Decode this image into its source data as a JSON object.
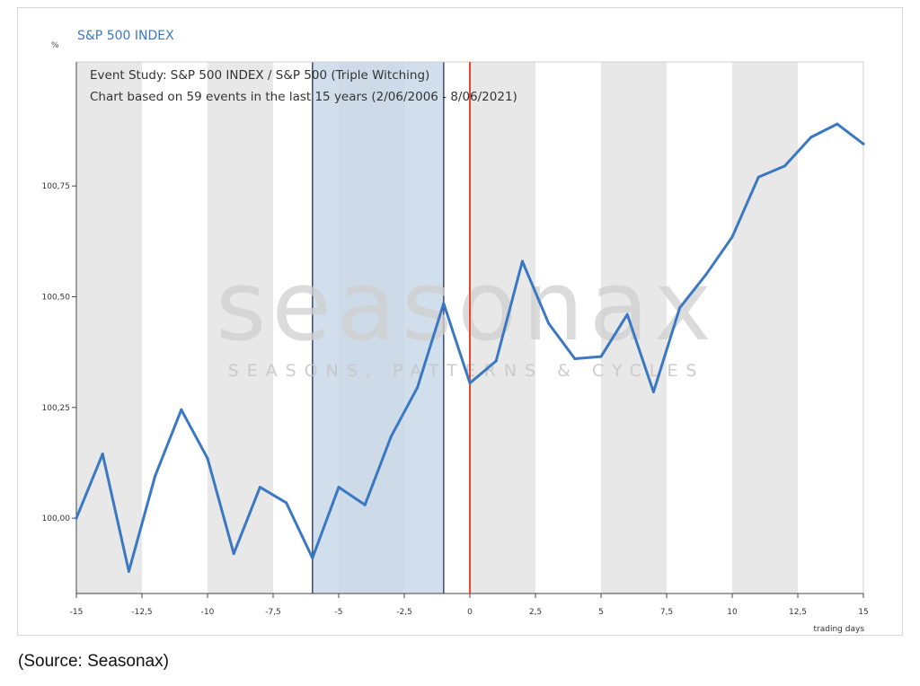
{
  "chart_data": {
    "type": "line",
    "title": "S&P 500 INDEX",
    "y_unit": "%",
    "xlabel": "trading days",
    "ylabel": "",
    "annotations": [
      "Event Study: S&P 500 INDEX / S&P 500 (Triple Witching)",
      "Chart based on 59 events in the last 15 years (2/06/2006 - 8/06/2021)"
    ],
    "watermark": {
      "main": "seasonax",
      "tagline": "SEASONS, PATTERNS & CYCLES"
    },
    "xlim": [
      -15,
      15
    ],
    "ylim": [
      99.83,
      101.03
    ],
    "x_ticks": [
      -15,
      -12.5,
      -10,
      -7.5,
      -5,
      -2.5,
      0,
      2.5,
      5,
      7.5,
      10,
      12.5,
      15
    ],
    "x_tick_labels": [
      "-15",
      "-12,5",
      "-10",
      "-7,5",
      "-5",
      "-2,5",
      "0",
      "2,5",
      "5",
      "7,5",
      "10",
      "12,5",
      "15"
    ],
    "y_ticks": [
      100.0,
      100.25,
      100.5,
      100.75
    ],
    "y_tick_labels": [
      "100,00",
      "100,25",
      "100,50",
      "100,75"
    ],
    "grid": false,
    "highlight_window": [
      -6,
      -1
    ],
    "event_line": 0,
    "colors": {
      "line": "#3a78c2",
      "title": "#3a78c2",
      "event_line": "#e8492e",
      "window_fill": "#c6d6e6",
      "window_border": "#3c4a7a",
      "band": "#e8e8e8"
    },
    "series": [
      {
        "x": [
          -15,
          -14,
          -13,
          -12,
          -11,
          -10,
          -9,
          -8,
          -7,
          -6,
          -5,
          -4,
          -3,
          -2,
          -1,
          0,
          1,
          2,
          3,
          4,
          5,
          6,
          7,
          8,
          9,
          10,
          11,
          12,
          13,
          14,
          15
        ],
        "values": [
          100.0,
          100.145,
          99.88,
          100.095,
          100.245,
          100.135,
          99.92,
          100.07,
          100.035,
          99.91,
          100.07,
          100.03,
          100.185,
          100.295,
          100.485,
          100.305,
          100.355,
          100.58,
          100.44,
          100.36,
          100.365,
          100.46,
          100.285,
          100.475,
          100.55,
          100.635,
          100.77,
          100.795,
          100.86,
          100.89,
          100.845
        ]
      }
    ]
  },
  "source_caption": "(Source: Seasonax)"
}
